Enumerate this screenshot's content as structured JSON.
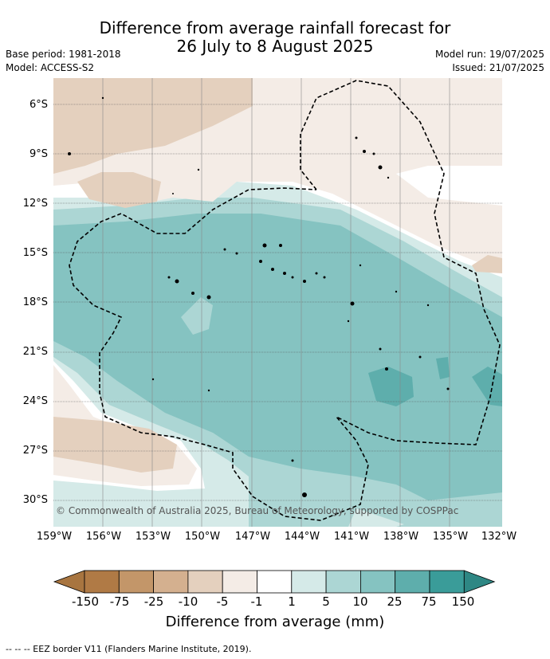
{
  "title_line1": "Difference from average rainfall forecast for",
  "title_line2": "26 July to 8 August 2025",
  "base_period": "Base period: 1981-2018",
  "model": "Model: ACCESS-S2",
  "model_run": "Model run: 19/07/2025",
  "issued": "Issued: 21/07/2025",
  "copyright": "© Commonwealth of Australia 2025, Bureau of Meteorology, supported by COSPPac",
  "lat_labels": [
    "6°S",
    "9°S",
    "12°S",
    "15°S",
    "18°S",
    "21°S",
    "24°S",
    "27°S",
    "30°S"
  ],
  "lon_labels": [
    "159°W",
    "156°W",
    "153°W",
    "150°W",
    "147°W",
    "144°W",
    "141°W",
    "138°W",
    "135°W",
    "132°W"
  ],
  "colorbar": {
    "label": "Difference from average (mm)",
    "ticks": [
      "-150",
      "-75",
      "-25",
      "-10",
      "-5",
      "-1",
      "1",
      "5",
      "10",
      "25",
      "75",
      "150"
    ],
    "colors": [
      "#a87540",
      "#b07a45",
      "#c39669",
      "#d4b08f",
      "#e4d0be",
      "#f4ece6",
      "#ffffff",
      "#d5eae8",
      "#acd6d4",
      "#85c3c1",
      "#5eaeac",
      "#3a9c99",
      "#2e8784"
    ]
  },
  "legend_note": "-- -- -- EEZ border V11 (Flanders Marine Institute, 2019)."
}
